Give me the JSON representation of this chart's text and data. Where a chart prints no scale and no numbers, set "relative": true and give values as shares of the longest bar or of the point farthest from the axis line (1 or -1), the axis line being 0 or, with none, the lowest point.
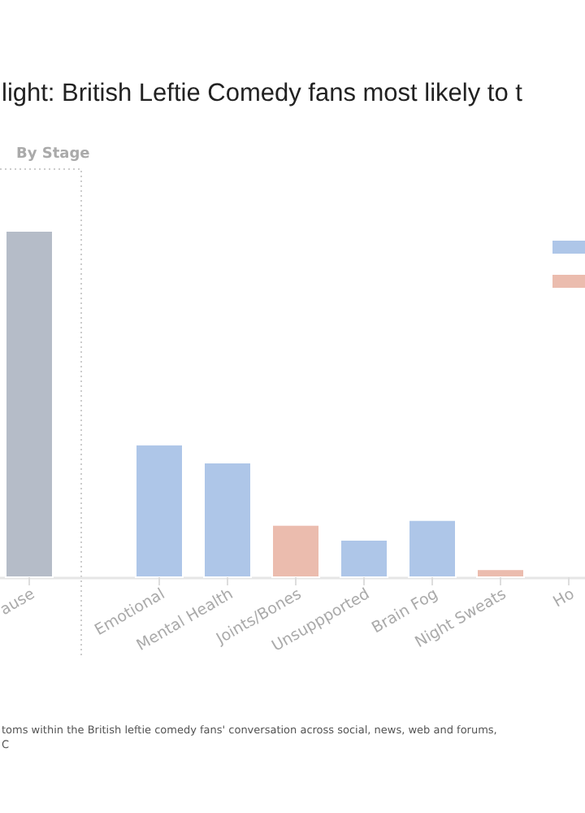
{
  "chart_data": {
    "type": "bar",
    "title": "light: British Leftie Comedy fans most likely to t",
    "relative": true,
    "categories": [
      "ause",
      "Emotional",
      "Mental Health",
      "Joints/Bones",
      "Unsuppported",
      "Brain Fog",
      "Night Sweats",
      "Ho"
    ],
    "series": [
      {
        "color": "#aec6e8",
        "values": [
          null,
          0.383,
          0.331,
          null,
          0.108,
          0.165,
          null,
          null
        ]
      },
      {
        "color": "#ebbcae",
        "values": [
          null,
          null,
          null,
          0.151,
          null,
          null,
          0.023,
          null
        ]
      },
      {
        "color": "#b5bcc8",
        "values": [
          1,
          null,
          null,
          null,
          null,
          null,
          null,
          null
        ]
      }
    ],
    "annotations": [
      "By Stage",
      "toms within the British leftie comedy fans' conversation across social, news, web and forums,",
      "C"
    ]
  }
}
